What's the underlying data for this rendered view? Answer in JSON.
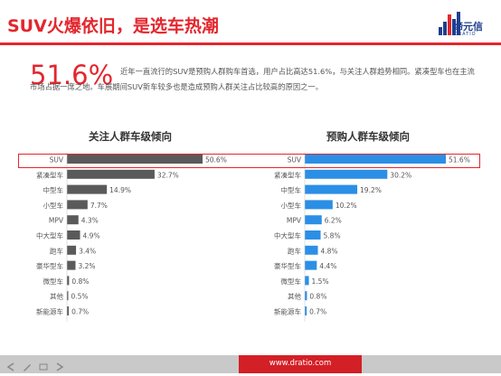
{
  "header": {
    "title": "SUV火爆依旧，是选车热潮",
    "logo_text": "缔元信",
    "logo_sub": "DRATIO"
  },
  "highlight": {
    "value": "51.6%",
    "text": "近年一直流行的SUV是预购人群购车首选，用户占比高达51.6%，与关注人群趋势相同。紧凑型车也在主流市场占据一席之地。车展期间SUV新车较多也是造成预购人群关注占比较高的原因之一。"
  },
  "footer": {
    "url": "www.dratio.com"
  },
  "colors": {
    "accent": "#e3262d",
    "bar_dark": "#5a5a5a",
    "bar_blue": "#2b8fe6"
  },
  "chart_data": [
    {
      "type": "bar",
      "orientation": "horizontal",
      "title": "关注人群车级倾向",
      "categories": [
        "SUV",
        "紧凑型车",
        "中型车",
        "小型车",
        "MPV",
        "中大型车",
        "跑车",
        "豪华型车",
        "微型车",
        "其他",
        "新能源车"
      ],
      "values": [
        50.6,
        32.7,
        14.9,
        7.7,
        4.3,
        4.9,
        3.4,
        3.2,
        0.8,
        0.5,
        0.7
      ],
      "labels": [
        "50.6%",
        "32.7%",
        "14.9%",
        "7.7%",
        "4.3%",
        "4.9%",
        "3.4%",
        "3.2%",
        "0.8%",
        "0.5%",
        "0.7%"
      ],
      "color": "#5a5a5a",
      "xlim": [
        0,
        50.6
      ]
    },
    {
      "type": "bar",
      "orientation": "horizontal",
      "title": "预购人群车级倾向",
      "categories": [
        "SUV",
        "紧凑型车",
        "中型车",
        "小型车",
        "MPV",
        "中大型车",
        "跑车",
        "豪华型车",
        "微型车",
        "其他",
        "新能源车"
      ],
      "values": [
        51.6,
        30.2,
        19.2,
        10.2,
        6.2,
        5.8,
        4.8,
        4.4,
        1.5,
        0.8,
        0.7
      ],
      "labels": [
        "51.6%",
        "30.2%",
        "19.2%",
        "10.2%",
        "6.2%",
        "5.8%",
        "4.8%",
        "4.4%",
        "1.5%",
        "0.8%",
        "0.7%"
      ],
      "color": "#2b8fe6",
      "xlim": [
        0,
        51.6
      ]
    }
  ]
}
